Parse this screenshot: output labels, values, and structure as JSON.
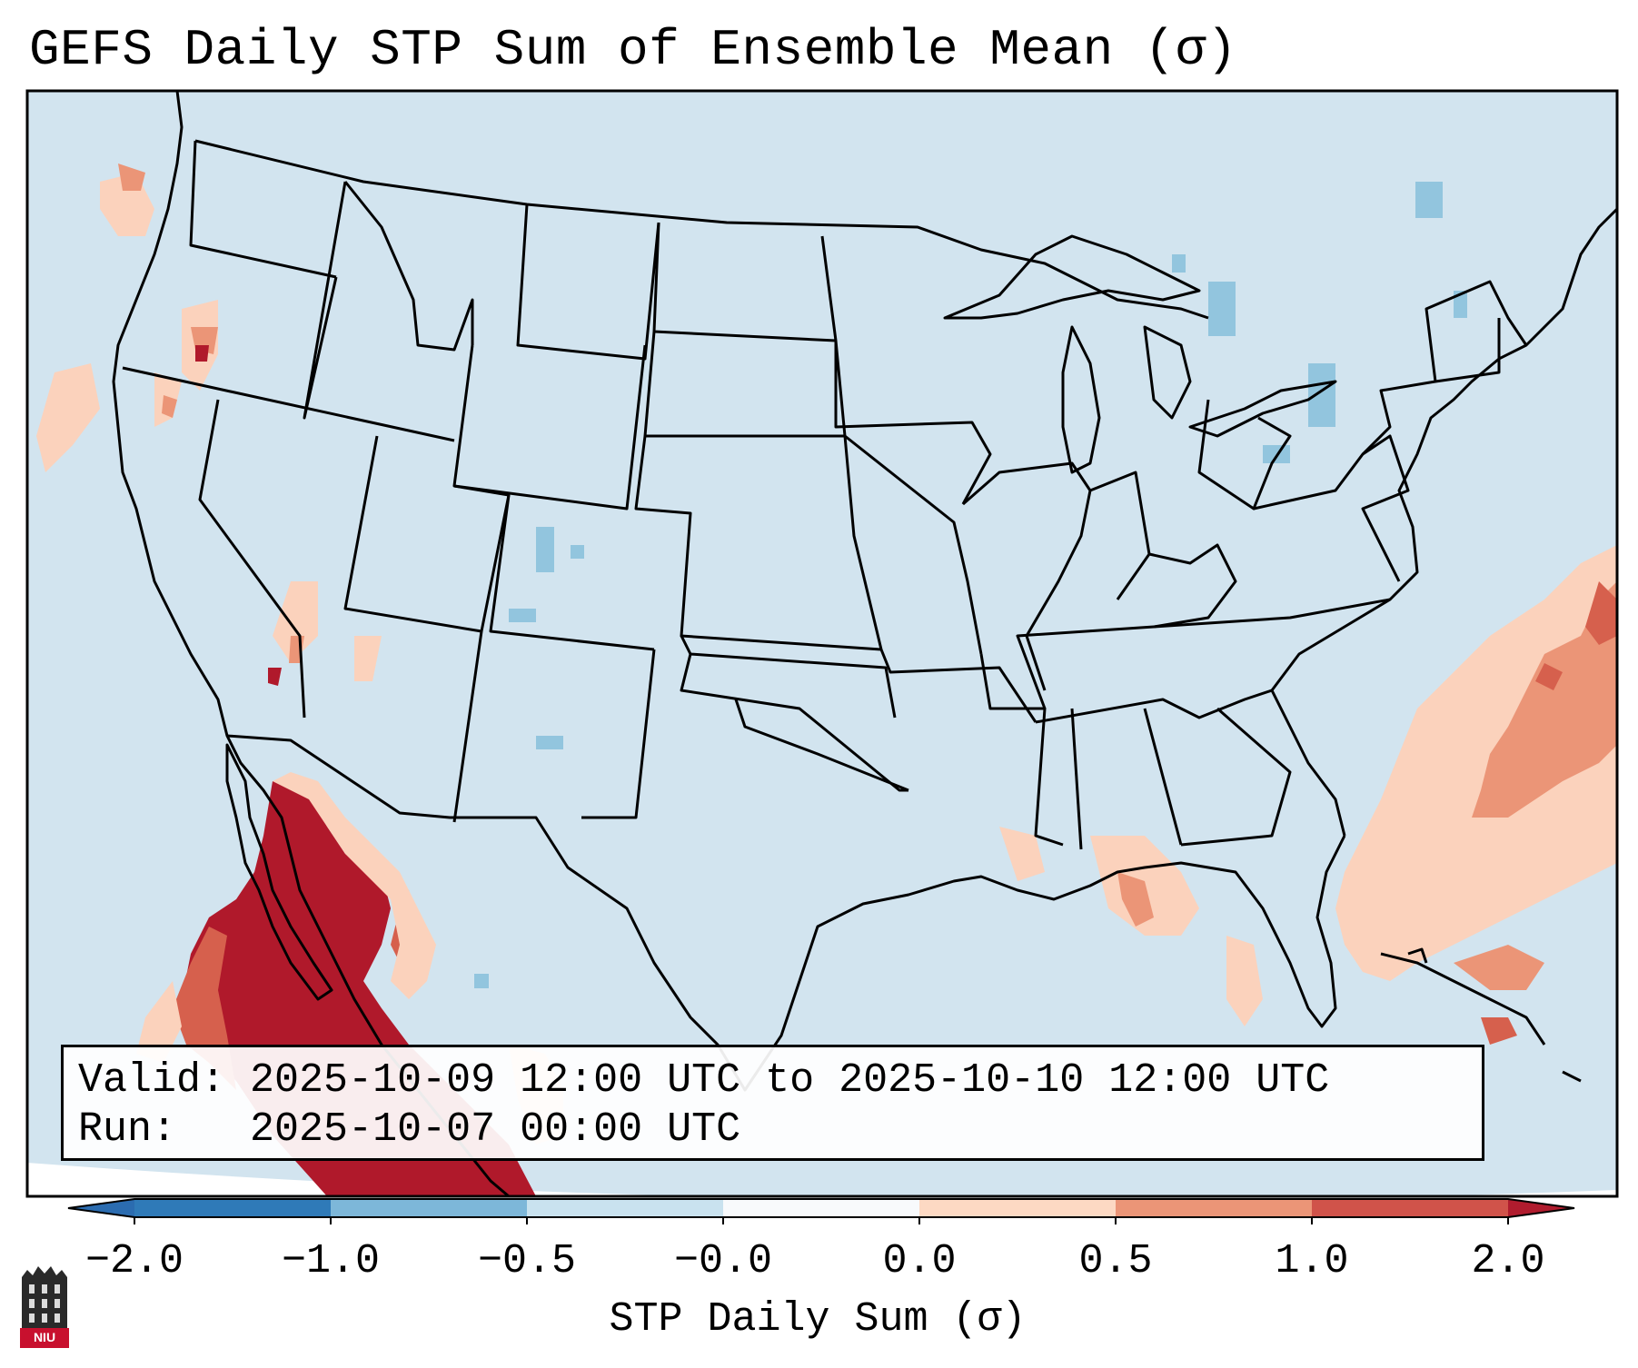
{
  "title": "GEFS Daily STP Sum of Ensemble Mean (σ)",
  "valid_label": "Valid:",
  "valid_text": "2025-10-09 12:00 UTC to 2025-10-10 12:00 UTC",
  "run_label": "Run:",
  "run_text": "2025-10-07 00:00 UTC",
  "colorbar": {
    "label": "STP Daily Sum (σ)",
    "ticks": [
      "−2.0",
      "−1.0",
      "−0.5",
      "−0.0",
      "0.0",
      "0.5",
      "1.0",
      "2.0"
    ],
    "colors": [
      "#2f7ab8",
      "#7db7d9",
      "#c9e2ef",
      "#f8fafc",
      "#fdd9c3",
      "#eb9577",
      "#d0534a"
    ],
    "extend_low_color": "#2b6cb0",
    "extend_high_color": "#b01c2e"
  },
  "colors": {
    "ocean": "#d2e4ef",
    "land": "#d2e4ef",
    "border": "#000000",
    "red_strong": "#b0192b",
    "red_mid": "#d6604d",
    "orange": "#f0a080",
    "peach": "#fbd2bc",
    "blue_light": "#92c5de"
  },
  "logo": {
    "text": "NIU",
    "icon": "niu-tower-logo"
  },
  "legend_icon": "colorbar"
}
